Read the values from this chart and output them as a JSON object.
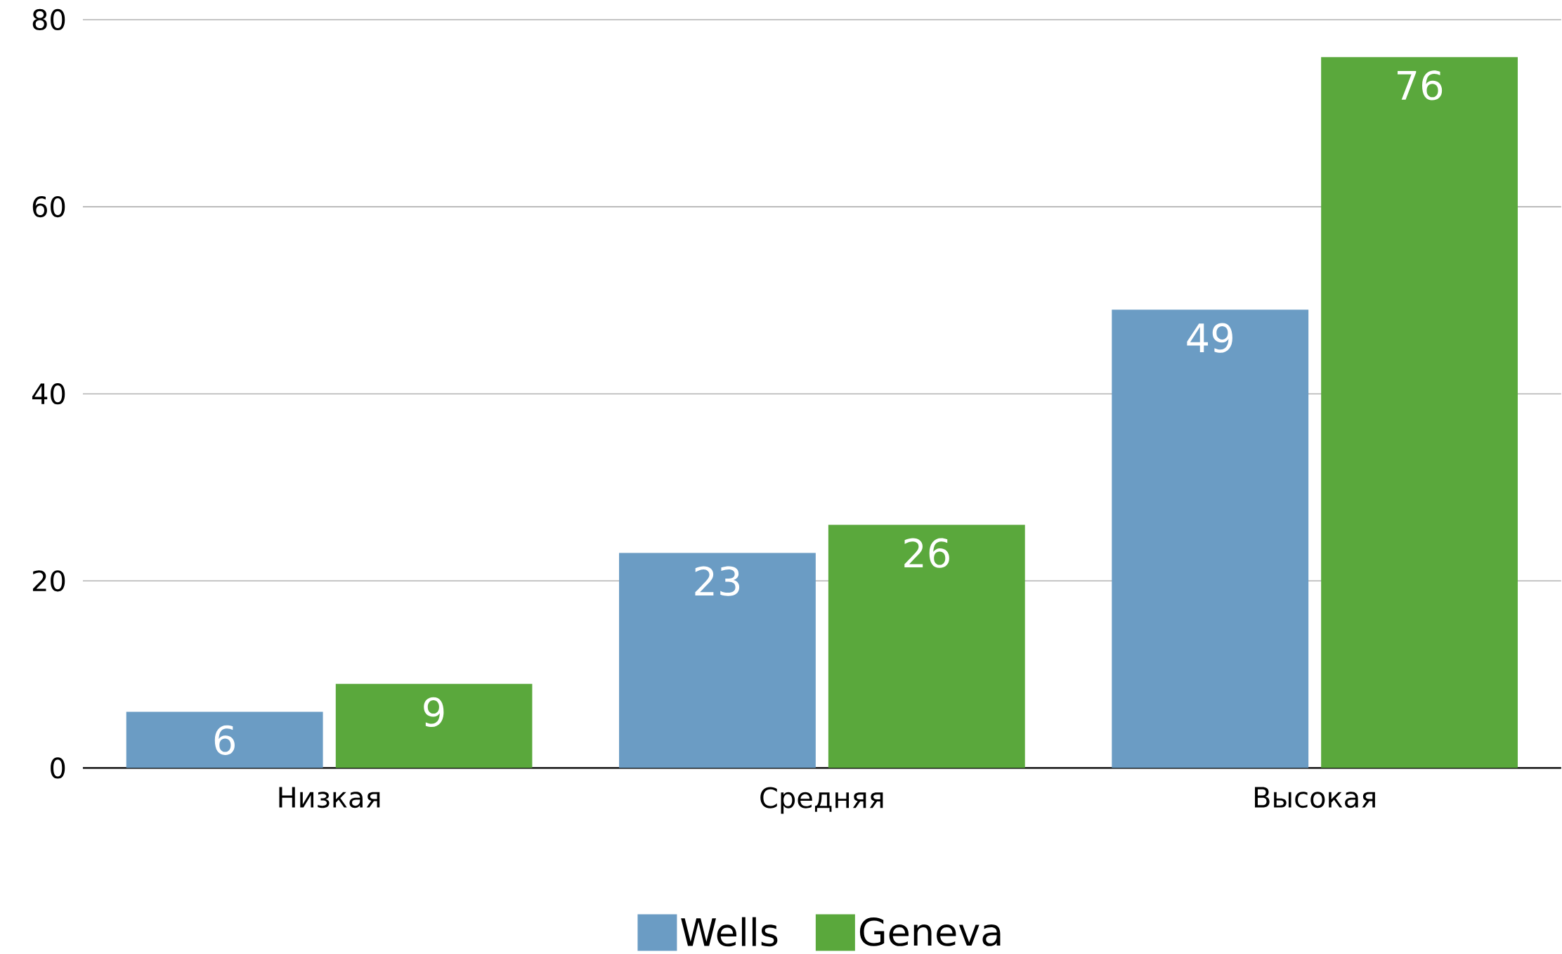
{
  "chart_data": {
    "type": "bar",
    "categories": [
      "Низкая",
      "Средняя",
      "Высокая"
    ],
    "series": [
      {
        "name": "Wells",
        "color": "#6b9cc4",
        "values": [
          6,
          23,
          49
        ]
      },
      {
        "name": "Geneva",
        "color": "#5aa83c",
        "values": [
          9,
          26,
          76
        ]
      }
    ],
    "ylim": [
      0,
      80
    ],
    "yticks": [
      0,
      20,
      40,
      60,
      80
    ],
    "grid": "y",
    "legend": "bottom",
    "data_labels": true
  }
}
